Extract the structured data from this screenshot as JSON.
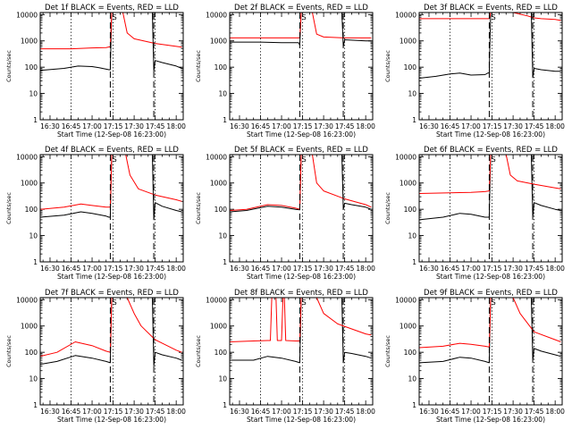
{
  "chart_data": {
    "type": "line",
    "layout": "3x3 grid of small multiples",
    "shared": {
      "ylabel": "Counts/sec",
      "xlabel": "Start Time (12-Sep-08 16:23:00)",
      "y_scale": "log",
      "ylim": [
        1,
        12000
      ],
      "y_ticks": [
        1,
        10,
        100,
        1000,
        10000
      ],
      "y_tick_labels": [
        "1",
        "10",
        "100",
        "1000",
        "10000"
      ],
      "xlim": [
        "16:23",
        "18:05"
      ],
      "x_ticks": [
        "16:30",
        "16:45",
        "17:00",
        "17:15",
        "17:30",
        "17:45",
        "18:00"
      ],
      "x_tick_labels": [
        "16:30",
        "16:45",
        "17:00",
        "17:15",
        "17:30",
        "17:45",
        "18:00"
      ],
      "dotted_verticals": [
        "16:45",
        "17:15",
        "17:45"
      ],
      "dashed_verticals": [
        "17:13",
        "17:44"
      ],
      "marker_labels": [
        {
          "x": "17:16",
          "text": "S"
        },
        {
          "x": "17:44",
          "text": "E"
        }
      ],
      "colors": {
        "events": "#000000",
        "lld": "#ff0000",
        "frame": "#000000",
        "background": "#ffffff"
      }
    },
    "panels": [
      {
        "title": "Det 1f BLACK = Events, RED = LLD",
        "series": [
          {
            "color": "#000000",
            "x": [
              "16:23",
              "16:40",
              "16:50",
              "17:00",
              "17:05",
              "17:12",
              "17:13",
              "17:14",
              "17:20",
              "17:40",
              "17:43",
              "17:44",
              "17:45",
              "17:50",
              "18:00",
              "18:04"
            ],
            "y": [
              75,
              90,
              110,
              105,
              95,
              80,
              80,
              12000,
              12000,
              12000,
              12000,
              70,
              180,
              150,
              110,
              90
            ]
          },
          {
            "color": "#ff0000",
            "x": [
              "16:23",
              "16:45",
              "17:00",
              "17:10",
              "17:13",
              "17:14",
              "17:22",
              "17:25",
              "17:30",
              "17:45",
              "18:00",
              "18:04"
            ],
            "y": [
              500,
              500,
              540,
              560,
              600,
              12000,
              12000,
              2000,
              1200,
              800,
              620,
              580
            ]
          }
        ]
      },
      {
        "title": "Det 2f BLACK = Events, RED = LLD",
        "series": [
          {
            "color": "#000000",
            "x": [
              "16:23",
              "16:45",
              "17:00",
              "17:12",
              "17:13",
              "17:14",
              "17:40",
              "17:43",
              "17:44",
              "17:45",
              "18:00",
              "18:04"
            ],
            "y": [
              900,
              900,
              850,
              850,
              700,
              12000,
              12000,
              12000,
              600,
              1100,
              1000,
              1000
            ]
          },
          {
            "color": "#ff0000",
            "x": [
              "16:23",
              "16:45",
              "17:00",
              "17:13",
              "17:14",
              "17:22",
              "17:25",
              "17:30",
              "17:45",
              "18:00",
              "18:04"
            ],
            "y": [
              1300,
              1300,
              1300,
              1300,
              12000,
              12000,
              1800,
              1400,
              1300,
              1300,
              1300
            ]
          }
        ]
      },
      {
        "title": "Det 3f BLACK = Events, RED = LLD",
        "series": [
          {
            "color": "#000000",
            "x": [
              "16:23",
              "16:35",
              "16:45",
              "16:52",
              "17:00",
              "17:10",
              "17:12",
              "17:13",
              "17:14",
              "17:40",
              "17:43",
              "17:44",
              "17:45",
              "17:50",
              "18:00",
              "18:04"
            ],
            "y": [
              38,
              45,
              55,
              60,
              50,
              52,
              60,
              60,
              12000,
              12000,
              12000,
              40,
              90,
              80,
              70,
              70
            ]
          },
          {
            "color": "#ff0000",
            "x": [
              "16:23",
              "17:13",
              "17:14",
              "17:30",
              "17:40",
              "17:45",
              "17:50",
              "18:00",
              "18:04"
            ],
            "y": [
              7000,
              7000,
              12000,
              12000,
              9000,
              7500,
              7000,
              6500,
              6000
            ]
          }
        ]
      },
      {
        "title": "Det 4f BLACK = Events, RED = LLD",
        "series": [
          {
            "color": "#000000",
            "x": [
              "16:23",
              "16:40",
              "16:52",
              "17:00",
              "17:10",
              "17:12",
              "17:13",
              "17:14",
              "17:40",
              "17:43",
              "17:44",
              "17:45",
              "17:50",
              "18:00",
              "18:04"
            ],
            "y": [
              50,
              60,
              80,
              70,
              55,
              50,
              50,
              12000,
              12000,
              12000,
              40,
              180,
              130,
              90,
              80
            ]
          },
          {
            "color": "#ff0000",
            "x": [
              "16:23",
              "16:40",
              "16:52",
              "17:00",
              "17:10",
              "17:13",
              "17:14",
              "17:24",
              "17:27",
              "17:33",
              "17:45",
              "18:00",
              "18:04"
            ],
            "y": [
              100,
              120,
              160,
              140,
              120,
              120,
              12000,
              12000,
              2000,
              600,
              350,
              230,
              200
            ]
          }
        ]
      },
      {
        "title": "Det 5f BLACK = Events, RED = LLD",
        "series": [
          {
            "color": "#000000",
            "x": [
              "16:23",
              "16:35",
              "16:50",
              "17:00",
              "17:10",
              "17:13",
              "17:14",
              "17:40",
              "17:43",
              "17:44",
              "17:45",
              "17:50",
              "18:00",
              "18:04"
            ],
            "y": [
              80,
              90,
              130,
              120,
              100,
              95,
              12000,
              12000,
              12000,
              100,
              170,
              150,
              120,
              100
            ]
          },
          {
            "color": "#ff0000",
            "x": [
              "16:23",
              "16:35",
              "16:50",
              "17:00",
              "17:10",
              "17:13",
              "17:14",
              "17:22",
              "17:25",
              "17:30",
              "17:45",
              "18:00",
              "18:04"
            ],
            "y": [
              90,
              100,
              150,
              140,
              110,
              100,
              12000,
              12000,
              1000,
              500,
              250,
              150,
              120
            ]
          }
        ]
      },
      {
        "title": "Det 6f BLACK = Events, RED = LLD",
        "series": [
          {
            "color": "#000000",
            "x": [
              "16:23",
              "16:40",
              "16:52",
              "17:00",
              "17:10",
              "17:13",
              "17:14",
              "17:40",
              "17:43",
              "17:44",
              "17:45",
              "17:50",
              "18:00",
              "18:04"
            ],
            "y": [
              40,
              50,
              70,
              65,
              50,
              50,
              12000,
              12000,
              12000,
              50,
              180,
              140,
              100,
              90
            ]
          },
          {
            "color": "#ff0000",
            "x": [
              "16:23",
              "16:45",
              "17:00",
              "17:10",
              "17:13",
              "17:14",
              "17:25",
              "17:28",
              "17:33",
              "17:45",
              "18:00",
              "18:04"
            ],
            "y": [
              400,
              420,
              440,
              470,
              500,
              12000,
              12000,
              2000,
              1200,
              900,
              650,
              600
            ]
          }
        ]
      },
      {
        "title": "Det 7f BLACK = Events, RED = LLD",
        "series": [
          {
            "color": "#000000",
            "x": [
              "16:23",
              "16:35",
              "16:48",
              "17:00",
              "17:10",
              "17:13",
              "17:14",
              "17:40",
              "17:43",
              "17:44",
              "17:45",
              "17:50",
              "18:00",
              "18:04"
            ],
            "y": [
              35,
              45,
              75,
              60,
              45,
              40,
              12000,
              12000,
              12000,
              30,
              100,
              80,
              60,
              50
            ]
          },
          {
            "color": "#ff0000",
            "x": [
              "16:23",
              "16:35",
              "16:48",
              "17:00",
              "17:10",
              "17:13",
              "17:14",
              "17:25",
              "17:30",
              "17:35",
              "17:45",
              "18:00",
              "18:04"
            ],
            "y": [
              70,
              100,
              250,
              180,
              110,
              100,
              12000,
              12000,
              3000,
              1000,
              300,
              120,
              100
            ]
          }
        ]
      },
      {
        "title": "Det 8f BLACK = Events, RED = LLD",
        "series": [
          {
            "color": "#000000",
            "x": [
              "16:23",
              "16:40",
              "16:50",
              "17:00",
              "17:10",
              "17:13",
              "17:14",
              "17:40",
              "17:43",
              "17:44",
              "17:45",
              "17:50",
              "18:00",
              "18:04"
            ],
            "y": [
              50,
              50,
              70,
              60,
              45,
              40,
              12000,
              12000,
              12000,
              40,
              100,
              90,
              70,
              60
            ]
          },
          {
            "color": "#ff0000",
            "x": [
              "16:23",
              "16:40",
              "16:50",
              "16:52",
              "16:53",
              "16:56",
              "16:57",
              "17:00",
              "17:01",
              "17:02",
              "17:03",
              "17:10",
              "17:13",
              "17:14",
              "17:25",
              "17:30",
              "17:40",
              "18:00",
              "18:04"
            ],
            "y": [
              250,
              270,
              280,
              280,
              12000,
              12000,
              280,
              280,
              12000,
              12000,
              280,
              270,
              270,
              12000,
              12000,
              3000,
              1200,
              500,
              450
            ]
          }
        ]
      },
      {
        "title": "Det 9f BLACK = Events, RED = LLD",
        "series": [
          {
            "color": "#000000",
            "x": [
              "16:23",
              "16:40",
              "16:52",
              "17:00",
              "17:10",
              "17:13",
              "17:14",
              "17:40",
              "17:43",
              "17:44",
              "17:45",
              "17:50",
              "18:00",
              "18:04"
            ],
            "y": [
              40,
              45,
              65,
              60,
              45,
              40,
              12000,
              12000,
              12000,
              50,
              140,
              110,
              80,
              70
            ]
          },
          {
            "color": "#ff0000",
            "x": [
              "16:23",
              "16:40",
              "16:52",
              "17:00",
              "17:10",
              "17:13",
              "17:14",
              "17:30",
              "17:35",
              "17:45",
              "18:00",
              "18:04"
            ],
            "y": [
              150,
              170,
              220,
              200,
              170,
              160,
              12000,
              12000,
              3000,
              600,
              300,
              250
            ]
          }
        ]
      }
    ]
  }
}
